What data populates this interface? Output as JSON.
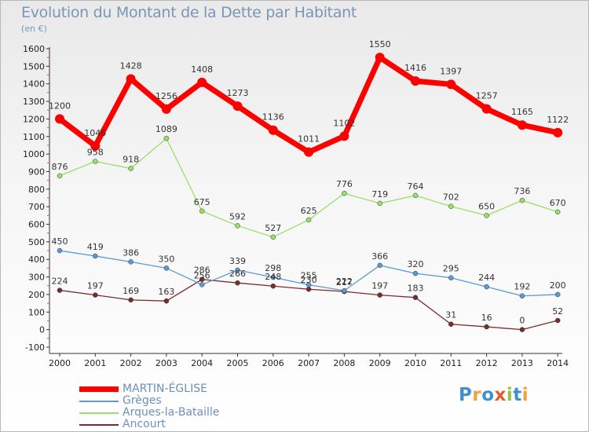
{
  "title": "Evolution du Montant de la Dette par Habitant",
  "subtitle": "(en €)",
  "logo_text": "Proxiti",
  "chart_data": {
    "type": "line",
    "title": "Evolution du Montant de la Dette par Habitant",
    "ylabel": "(en €)",
    "x": [
      "2000",
      "2001",
      "2002",
      "2003",
      "2004",
      "2005",
      "2006",
      "2007",
      "2008",
      "2009",
      "2010",
      "2011",
      "2012",
      "2013",
      "2014"
    ],
    "ylim": [
      -100,
      1600
    ],
    "yticks": [
      -100,
      0,
      100,
      200,
      300,
      400,
      500,
      600,
      700,
      800,
      900,
      1000,
      1100,
      1200,
      1300,
      1400,
      1500,
      1600
    ],
    "grid": false,
    "legend_position": "bottom",
    "series": [
      {
        "name": "MARTIN-ÉGLISE",
        "color": "#ff0000",
        "values": [
          1200,
          1046,
          1428,
          1256,
          1408,
          1273,
          1136,
          1011,
          1102,
          1550,
          1416,
          1397,
          1257,
          1165,
          1122
        ]
      },
      {
        "name": "Grèges",
        "color": "#5b9bd5",
        "values": [
          450,
          419,
          386,
          350,
          256,
          339,
          298,
          255,
          222,
          366,
          320,
          295,
          244,
          192,
          200
        ]
      },
      {
        "name": "Arques-la-Bataille",
        "color": "#99e066",
        "values": [
          876,
          958,
          918,
          1089,
          675,
          592,
          527,
          625,
          776,
          719,
          764,
          702,
          650,
          736,
          670
        ]
      },
      {
        "name": "Ancourt",
        "color": "#7a2b2b",
        "values": [
          224,
          197,
          169,
          163,
          286,
          266,
          248,
          230,
          217,
          197,
          183,
          31,
          16,
          0,
          52
        ]
      }
    ]
  }
}
